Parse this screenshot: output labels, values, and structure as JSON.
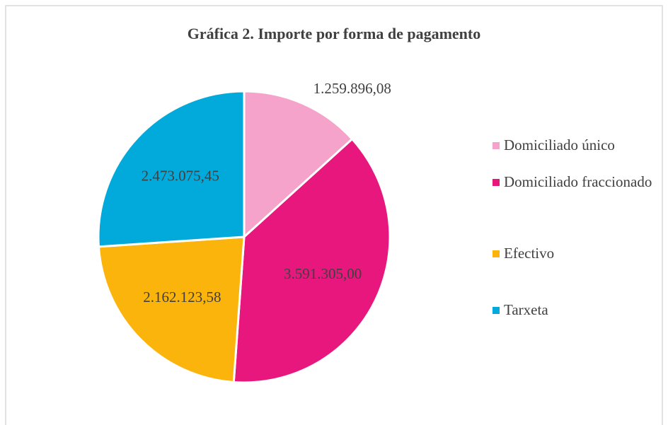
{
  "chart_data": {
    "type": "pie",
    "title": "Gráfica 2. Importe por forma de pagamento",
    "categories": [
      "Domiciliado único",
      "Domiciliado fraccionado",
      "Efectivo",
      "Tarxeta"
    ],
    "values": [
      1259896.08,
      3591305.0,
      2162123.58,
      2473075.45
    ],
    "value_labels": [
      "1.259.896,08",
      "3.591.305,00",
      "2.162.123,58",
      "2.473.075,45"
    ],
    "colors": [
      "#f5a3cb",
      "#e8177d",
      "#fbb40b",
      "#02aadb"
    ],
    "legend": "right"
  }
}
